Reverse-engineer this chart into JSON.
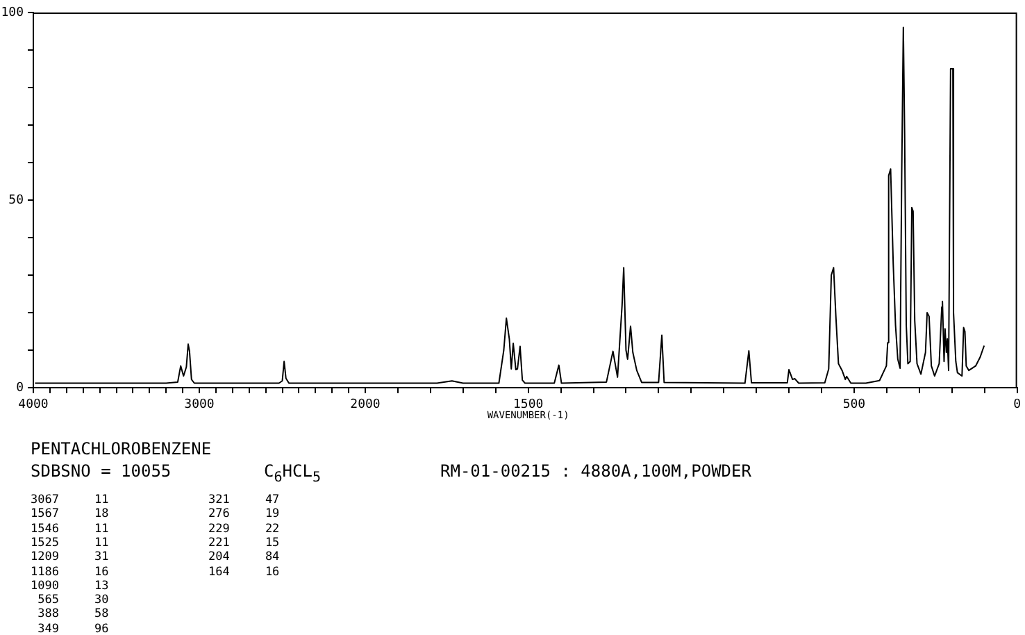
{
  "chart_data": [
    {
      "type": "line",
      "title": "PENTACHLOROBENZENE",
      "annotations": [
        "SDBSNO = 10055",
        "C$_{6}$HCL$_{5}$",
        "RM-01-00215 : 4880A,100M,POWDER",
        "3067     11",
        "1567     18",
        "1546     11",
        "1525     11",
        "1209     31",
        "1186     16",
        "1090     13",
        " 565     30",
        " 388     58",
        " 349     96",
        "321     47",
        "276     19",
        "229     22",
        "221     15",
        "204     84",
        "164     16"
      ],
      "series": [
        {
          "color": "#000000",
          "x": [
            3990,
            3200,
            3130,
            3112,
            3095,
            3078,
            3067,
            3059,
            3047,
            3030,
            2520,
            2500,
            2489,
            2478,
            2460,
            2000
          ],
          "values": [
            1.2,
            1.2,
            1.5,
            5.8,
            3.1,
            5.5,
            11.6,
            9.7,
            2.2,
            1.2,
            1.2,
            1.8,
            7,
            2.5,
            1.2,
            1.2
          ]
        }
      ],
      "xlim": [
        4000,
        2000
      ],
      "xticks": [
        4000,
        {
          "value": 3900,
          "label": null
        },
        {
          "value": 3800,
          "label": null
        },
        {
          "value": 3700,
          "label": null
        },
        {
          "value": 3600,
          "label": null
        },
        {
          "value": 3500,
          "label": null
        },
        {
          "value": 3400,
          "label": null
        },
        {
          "value": 3300,
          "label": null
        },
        {
          "value": 3200,
          "label": null
        },
        {
          "value": 3100,
          "label": null
        },
        3000,
        {
          "value": 2900,
          "label": null
        },
        {
          "value": 2800,
          "label": null
        },
        {
          "value": 2700,
          "label": null
        },
        {
          "value": 2600,
          "label": null
        },
        {
          "value": 2500,
          "label": null
        },
        {
          "value": 2400,
          "label": null
        },
        {
          "value": 2300,
          "label": null
        },
        {
          "value": 2200,
          "label": null
        },
        {
          "value": 2100,
          "label": null
        },
        2000
      ],
      "ylim": [
        0,
        100
      ],
      "yticks": [
        0,
        {
          "value": 10,
          "label": null
        },
        {
          "value": 20,
          "label": null
        },
        {
          "value": 30,
          "label": null
        },
        {
          "value": 40,
          "label": null
        },
        50,
        {
          "value": 60,
          "label": null
        },
        {
          "value": 70,
          "label": null
        },
        {
          "value": 80,
          "label": null
        },
        {
          "value": 90,
          "label": null
        },
        100
      ]
    },
    {
      "type": "line",
      "xlabel": "WAVENUMBER(-1)",
      "tick_labels": "x",
      "series": [
        {
          "color": "#000000",
          "x": [
            2000,
            1780,
            1734,
            1700,
            1590,
            1575,
            1567,
            1558,
            1552,
            1546,
            1538,
            1533,
            1525,
            1518,
            1510,
            1420,
            1406,
            1398,
            1260,
            1240,
            1226,
            1212,
            1207,
            1200,
            1195,
            1186,
            1179,
            1167,
            1152,
            1100,
            1090,
            1083,
            835,
            823,
            815,
            705,
            700,
            689,
            682,
            670,
            590,
            578,
            570,
            563,
            556,
            548,
            537,
            527,
            523,
            510,
            464,
            422,
            401,
            397,
            394,
            388,
            380,
            373,
            366,
            359,
            354,
            349,
            345,
            340,
            335,
            328,
            323,
            319,
            314,
            307,
            295,
            281,
            276,
            270,
            263,
            253,
            239,
            231,
            229,
            224,
            221,
            217,
            214,
            210,
            204,
            197,
            195,
            188,
            183,
            169,
            164,
            160,
            156,
            148,
            127,
            113,
            101
          ],
          "values": [
            1.2,
            1.2,
            1.8,
            1.2,
            1.2,
            10,
            18.5,
            13,
            5,
            11.8,
            4.8,
            5,
            11,
            2,
            1.2,
            1.2,
            6,
            1.2,
            1.5,
            9.7,
            2.8,
            22,
            32,
            10,
            7.6,
            16.4,
            9.4,
            4.6,
            1.4,
            1.4,
            14,
            1.4,
            1.2,
            9.8,
            1.3,
            1.3,
            4.8,
            2.2,
            2.4,
            1.2,
            1.3,
            5,
            30,
            32,
            19,
            6.4,
            4.6,
            2.2,
            3,
            1.2,
            1.2,
            1.9,
            5.8,
            12,
            56.5,
            58.3,
            33,
            16.7,
            7.6,
            5.2,
            56.5,
            96,
            67.6,
            16.7,
            6.4,
            7,
            48,
            47,
            17.9,
            6.4,
            3.6,
            9.4,
            20,
            19,
            5.8,
            3.1,
            6.4,
            21.5,
            23,
            7,
            15.7,
            9.4,
            13,
            4.6,
            85,
            85,
            20,
            7,
            4,
            3.1,
            16,
            15,
            5.8,
            4.6,
            5.8,
            8.2,
            11.2
          ]
        }
      ],
      "xlim": [
        2000,
        0
      ],
      "xticks": [
        {
          "value": 1900,
          "label": null
        },
        {
          "value": 1800,
          "label": null
        },
        {
          "value": 1700,
          "label": null
        },
        {
          "value": 1600,
          "label": null
        },
        1500,
        {
          "value": 1400,
          "label": null
        },
        {
          "value": 1300,
          "label": null
        },
        {
          "value": 1200,
          "label": null
        },
        {
          "value": 1100,
          "label": null
        },
        {
          "value": 1000,
          "label": null
        },
        {
          "value": 900,
          "label": null
        },
        {
          "value": 800,
          "label": null
        },
        {
          "value": 700,
          "label": null
        },
        {
          "value": 600,
          "label": null
        },
        500,
        {
          "value": 400,
          "label": null
        },
        {
          "value": 300,
          "label": null
        },
        {
          "value": 200,
          "label": null
        },
        {
          "value": 100,
          "label": null
        },
        0
      ],
      "ylim": [
        0,
        100
      ]
    }
  ]
}
